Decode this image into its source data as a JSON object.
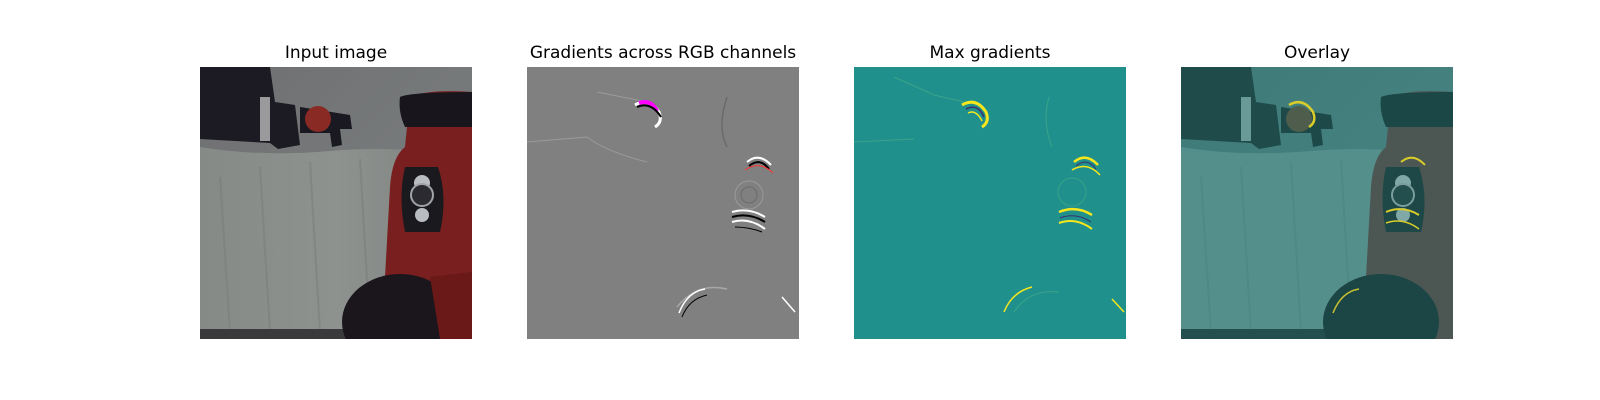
{
  "panels": [
    {
      "title": "Input image"
    },
    {
      "title": "Gradients across RGB channels"
    },
    {
      "title": "Max gradients"
    },
    {
      "title": "Overlay"
    }
  ],
  "colors": {
    "background": "#ffffff",
    "grad_gray": "#808080",
    "max_grad_teal": "#20908c",
    "max_grad_high": "#f5e61d",
    "robot_red": "#7a1f1f"
  }
}
